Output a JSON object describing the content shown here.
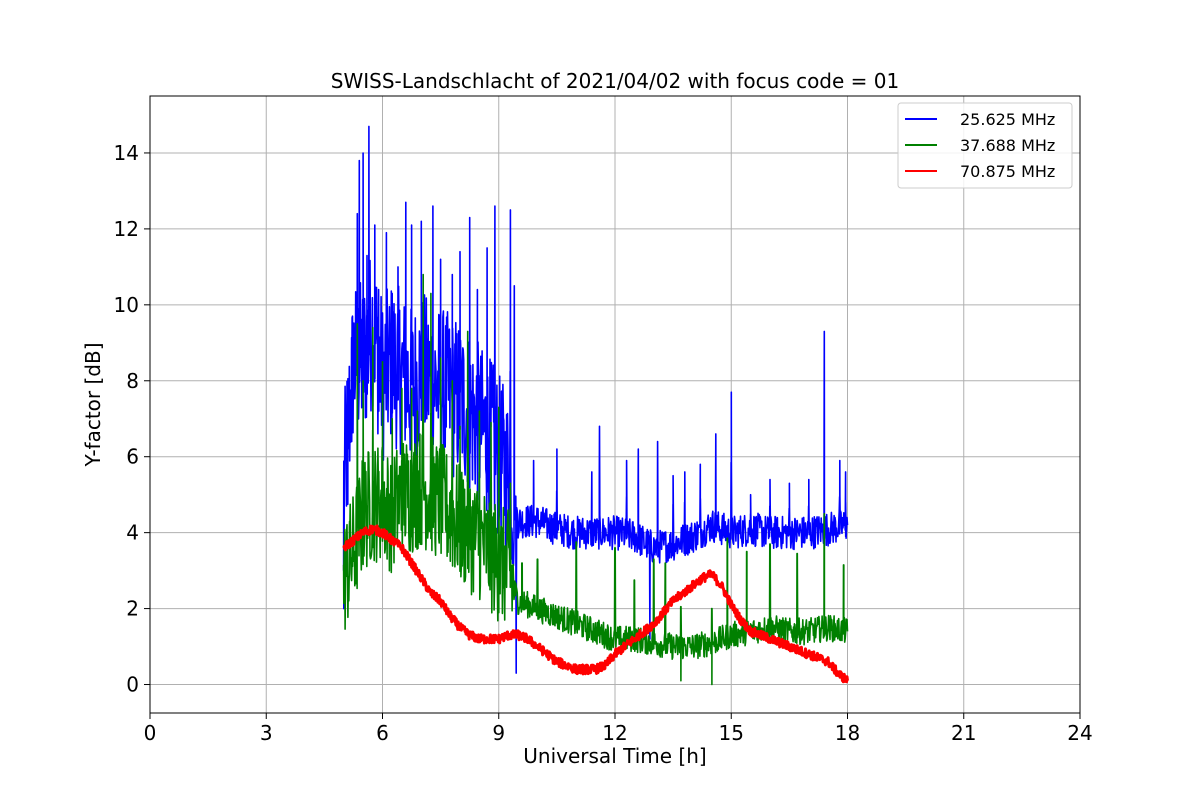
{
  "chart_data": {
    "type": "line",
    "title": "SWISS-Landschlacht of 2021/04/02 with focus code = 01",
    "xlabel": "Universal Time [h]",
    "ylabel": "Y-factor [dB]",
    "xlim": [
      0,
      24
    ],
    "ylim": [
      -0.75,
      15.5
    ],
    "xticks": [
      0,
      3,
      6,
      9,
      12,
      15,
      18,
      21,
      24
    ],
    "yticks": [
      0,
      2,
      4,
      6,
      8,
      10,
      12,
      14
    ],
    "grid": true,
    "legend_position": "top-right",
    "series": [
      {
        "name": "25.625 MHz",
        "color": "#0000ff",
        "x": [
          5.0,
          5.25,
          5.5,
          5.75,
          6.0,
          6.25,
          6.5,
          6.75,
          7.0,
          7.25,
          7.5,
          7.75,
          8.0,
          8.25,
          8.5,
          8.75,
          9.0,
          9.25,
          9.5,
          10.0,
          10.5,
          11.0,
          11.5,
          12.0,
          12.5,
          13.0,
          13.5,
          14.0,
          14.5,
          15.0,
          15.5,
          16.0,
          16.5,
          17.0,
          17.5,
          18.0
        ],
        "y": [
          5.2,
          8.5,
          8.5,
          9.5,
          8.0,
          8.5,
          8.2,
          7.8,
          8.2,
          8.0,
          7.8,
          7.6,
          7.5,
          7.2,
          6.8,
          6.5,
          6.0,
          5.5,
          4.3,
          4.3,
          4.1,
          4.0,
          4.0,
          4.0,
          3.9,
          3.6,
          3.7,
          3.9,
          4.2,
          4.0,
          4.1,
          4.0,
          4.0,
          4.0,
          4.1,
          4.2
        ],
        "spikes": [
          [
            5.0,
            2.0
          ],
          [
            5.1,
            5.5
          ],
          [
            5.2,
            8.8
          ],
          [
            5.35,
            12.4
          ],
          [
            5.4,
            13.8
          ],
          [
            5.5,
            14.0
          ],
          [
            5.6,
            11.3
          ],
          [
            5.65,
            14.7
          ],
          [
            5.8,
            12.1
          ],
          [
            5.9,
            10.4
          ],
          [
            6.1,
            11.9
          ],
          [
            6.25,
            10.3
          ],
          [
            6.4,
            11.0
          ],
          [
            6.6,
            12.7
          ],
          [
            6.75,
            12.1
          ],
          [
            7.0,
            12.2
          ],
          [
            7.3,
            12.6
          ],
          [
            7.5,
            11.2
          ],
          [
            7.8,
            10.8
          ],
          [
            8.0,
            11.4
          ],
          [
            8.25,
            12.3
          ],
          [
            8.45,
            10.4
          ],
          [
            8.7,
            11.5
          ],
          [
            8.9,
            12.6
          ],
          [
            9.3,
            12.5
          ],
          [
            9.4,
            10.5
          ],
          [
            9.45,
            0.3
          ],
          [
            9.9,
            5.9
          ],
          [
            10.5,
            6.2
          ],
          [
            11.4,
            5.6
          ],
          [
            11.6,
            6.8
          ],
          [
            12.3,
            5.9
          ],
          [
            12.6,
            6.2
          ],
          [
            12.9,
            1.2
          ],
          [
            13.1,
            6.4
          ],
          [
            13.5,
            5.5
          ],
          [
            13.8,
            5.6
          ],
          [
            14.2,
            5.8
          ],
          [
            14.6,
            6.6
          ],
          [
            15.0,
            7.7
          ],
          [
            15.5,
            5.0
          ],
          [
            16.0,
            5.4
          ],
          [
            16.5,
            5.3
          ],
          [
            17.0,
            5.4
          ],
          [
            17.4,
            9.3
          ],
          [
            17.8,
            5.9
          ],
          [
            17.95,
            5.6
          ]
        ]
      },
      {
        "name": "37.688 MHz",
        "color": "#008000",
        "x": [
          5.0,
          5.25,
          5.5,
          5.75,
          6.0,
          6.25,
          6.5,
          6.75,
          7.0,
          7.25,
          7.5,
          7.75,
          8.0,
          8.25,
          8.5,
          8.75,
          9.0,
          9.25,
          9.5,
          10.0,
          10.5,
          11.0,
          11.5,
          12.0,
          12.5,
          13.0,
          13.5,
          14.0,
          14.5,
          15.0,
          15.5,
          16.0,
          16.5,
          17.0,
          17.5,
          18.0
        ],
        "y": [
          2.8,
          3.5,
          4.5,
          4.8,
          4.8,
          4.5,
          5.0,
          5.0,
          5.2,
          5.0,
          4.8,
          4.5,
          4.2,
          4.0,
          3.8,
          3.5,
          3.2,
          3.0,
          2.2,
          2.0,
          1.8,
          1.6,
          1.4,
          1.2,
          1.2,
          1.1,
          1.0,
          1.0,
          1.1,
          1.3,
          1.4,
          1.5,
          1.4,
          1.4,
          1.5,
          1.4
        ],
        "spikes": [
          [
            5.0,
            2.3
          ],
          [
            5.15,
            4.3
          ],
          [
            5.35,
            9.5
          ],
          [
            5.5,
            8.0
          ],
          [
            5.75,
            9.4
          ],
          [
            6.0,
            8.5
          ],
          [
            6.25,
            7.0
          ],
          [
            6.5,
            7.8
          ],
          [
            6.75,
            7.8
          ],
          [
            6.9,
            7.2
          ],
          [
            7.05,
            10.8
          ],
          [
            7.25,
            10.3
          ],
          [
            7.5,
            8.6
          ],
          [
            7.8,
            8.0
          ],
          [
            8.0,
            6.8
          ],
          [
            8.2,
            9.3
          ],
          [
            8.5,
            7.2
          ],
          [
            8.8,
            6.9
          ],
          [
            9.0,
            7.3
          ],
          [
            9.3,
            5.3
          ],
          [
            9.6,
            2.4
          ],
          [
            10.0,
            2.6
          ],
          [
            11.0,
            3.5
          ],
          [
            12.0,
            3.2
          ],
          [
            12.5,
            1.5
          ],
          [
            13.0,
            2.6
          ],
          [
            13.3,
            2.4
          ],
          [
            13.7,
            0.1
          ],
          [
            14.5,
            0.0
          ],
          [
            14.9,
            3.7
          ],
          [
            15.4,
            3.0
          ],
          [
            16.0,
            3.4
          ],
          [
            16.7,
            2.9
          ],
          [
            17.4,
            4.5
          ],
          [
            17.9,
            2.3
          ]
        ]
      },
      {
        "name": "70.875 MHz",
        "color": "#ff0000",
        "x": [
          5.0,
          5.25,
          5.5,
          5.75,
          6.0,
          6.25,
          6.5,
          6.75,
          7.0,
          7.25,
          7.5,
          7.75,
          8.0,
          8.25,
          8.5,
          8.75,
          9.0,
          9.25,
          9.5,
          9.75,
          10.0,
          10.25,
          10.5,
          10.75,
          11.0,
          11.25,
          11.5,
          11.75,
          12.0,
          12.25,
          12.5,
          12.75,
          13.0,
          13.25,
          13.5,
          13.75,
          14.0,
          14.25,
          14.5,
          14.75,
          15.0,
          15.25,
          15.5,
          15.75,
          16.0,
          16.25,
          16.5,
          16.75,
          17.0,
          17.25,
          17.5,
          17.75,
          18.0
        ],
        "y": [
          3.6,
          3.8,
          4.0,
          4.1,
          4.0,
          3.8,
          3.6,
          3.2,
          2.8,
          2.4,
          2.2,
          1.8,
          1.5,
          1.3,
          1.2,
          1.2,
          1.2,
          1.3,
          1.3,
          1.2,
          1.0,
          0.8,
          0.6,
          0.5,
          0.4,
          0.4,
          0.4,
          0.5,
          0.8,
          1.0,
          1.2,
          1.4,
          1.6,
          1.9,
          2.2,
          2.4,
          2.6,
          2.8,
          2.9,
          2.6,
          2.1,
          1.7,
          1.4,
          1.3,
          1.2,
          1.1,
          1.0,
          0.9,
          0.8,
          0.7,
          0.6,
          0.3,
          0.1
        ]
      }
    ]
  }
}
